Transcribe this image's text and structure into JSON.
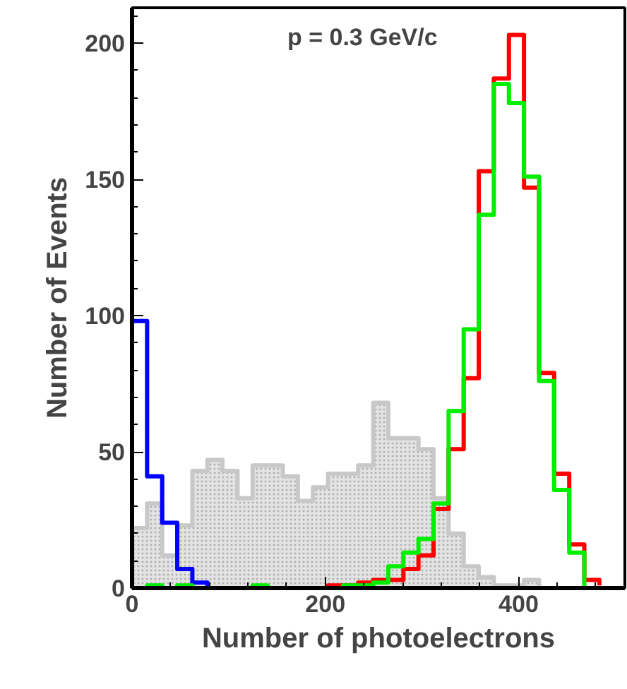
{
  "chart_data": {
    "type": "step",
    "xlabel": "Number of photoelectrons",
    "ylabel": "Number of Events",
    "annotations": [
      "p = 0.3 GeV/c"
    ],
    "x": [
      0,
      15.6,
      31.2,
      46.8,
      62.4,
      78,
      93.6,
      109.2,
      124.8,
      140.4,
      156,
      171.6,
      187.2,
      202.8,
      218.4,
      234,
      249.6,
      265.2,
      280.8,
      296.4,
      312,
      327.6,
      343.2,
      358.8,
      374.4,
      390,
      405.6,
      421.2,
      436.8,
      452.4,
      468,
      483.6
    ],
    "series": [
      {
        "type": "area",
        "color": "#c8c8c8",
        "values": [
          22,
          31,
          12,
          23,
          43,
          47,
          43,
          33,
          45,
          45,
          41,
          32,
          37,
          42,
          42,
          45,
          68,
          55,
          55,
          51,
          33,
          20,
          8,
          4,
          1,
          1,
          3,
          0,
          0,
          0,
          0,
          0
        ]
      },
      {
        "color": "#0000ff",
        "values": [
          98,
          41,
          24,
          7,
          2,
          0,
          null,
          null,
          null,
          null,
          null,
          null,
          null,
          null,
          null,
          null,
          null,
          null,
          null,
          null,
          null,
          null,
          null,
          null,
          null,
          null,
          null,
          null,
          null,
          null,
          null,
          null
        ]
      },
      {
        "color": "#ff0000",
        "values": [
          null,
          null,
          null,
          null,
          null,
          null,
          null,
          null,
          null,
          null,
          null,
          null,
          0,
          1,
          1,
          2,
          3,
          3,
          7,
          12,
          29,
          51,
          77,
          153,
          187,
          203,
          147,
          79,
          42,
          16,
          3,
          1
        ]
      },
      {
        "color": "#00ee00",
        "values": [
          0,
          1,
          0,
          1,
          0,
          0,
          0,
          0,
          1,
          0,
          0,
          0,
          0,
          0,
          1,
          1,
          2,
          8,
          13,
          18,
          31,
          65,
          95,
          137,
          185,
          178,
          151,
          76,
          36,
          13,
          0,
          0
        ]
      }
    ],
    "xlim": [
      0,
      510
    ],
    "ylim": [
      0,
      213
    ],
    "xticks": [
      0,
      200,
      400
    ],
    "yticks": [
      0,
      50,
      100,
      150,
      200
    ],
    "grid": false
  }
}
